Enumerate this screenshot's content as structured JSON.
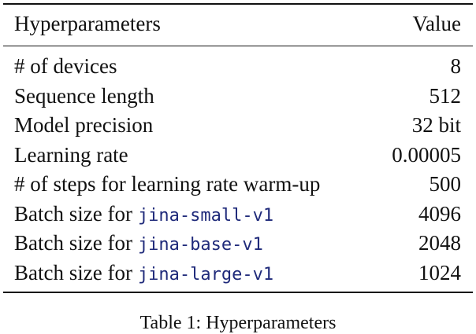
{
  "table": {
    "header": [
      "Hyperparameters",
      "Value"
    ],
    "rows": [
      {
        "name": "# of devices",
        "value": "8"
      },
      {
        "name": "Sequence length",
        "value": "512"
      },
      {
        "name": "Model precision",
        "value": "32 bit"
      },
      {
        "name": "Learning rate",
        "value": "0.00005"
      },
      {
        "name": "# of steps for learning rate warm-up",
        "value": "500"
      },
      {
        "name": "Batch size for",
        "code": "jina-small-v1",
        "value": "4096"
      },
      {
        "name": "Batch size for",
        "code": "jina-base-v1",
        "value": "2048"
      },
      {
        "name": "Batch size for",
        "code": "jina-large-v1",
        "value": "1024"
      }
    ],
    "caption": "Table 1: Hyperparameters"
  }
}
